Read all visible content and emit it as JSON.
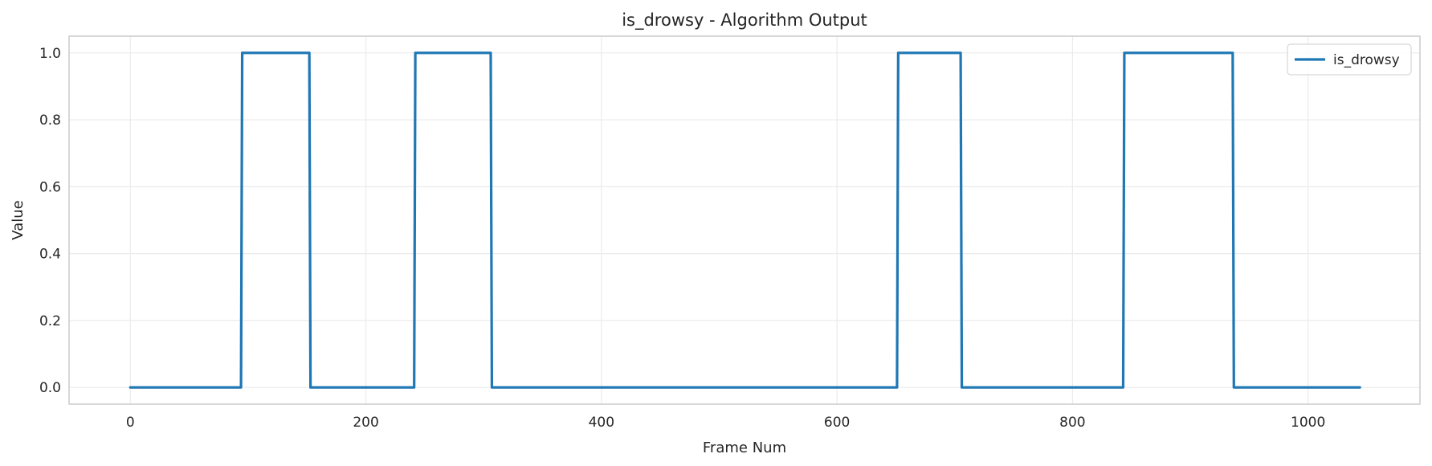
{
  "chart_data": {
    "type": "line",
    "title": "is_drowsy - Algorithm Output",
    "xlabel": "Frame Num",
    "ylabel": "Value",
    "xlim": [
      -52,
      1095
    ],
    "ylim": [
      -0.05,
      1.05
    ],
    "xticks": [
      0,
      200,
      400,
      600,
      800,
      1000
    ],
    "yticks": [
      0.0,
      0.2,
      0.4,
      0.6,
      0.8,
      1.0
    ],
    "xtick_labels": [
      "0",
      "200",
      "400",
      "600",
      "800",
      "1000"
    ],
    "ytick_labels": [
      "0.0",
      "0.2",
      "0.4",
      "0.6",
      "0.8",
      "1.0"
    ],
    "grid": true,
    "legend_position": "top-right",
    "series": [
      {
        "name": "is_drowsy",
        "color": "#1f77b4",
        "x": [
          0,
          94,
          95,
          152,
          153,
          241,
          242,
          306,
          307,
          651,
          652,
          705,
          706,
          843,
          844,
          936,
          937,
          1044
        ],
        "y": [
          0,
          0,
          1,
          1,
          0,
          0,
          1,
          1,
          0,
          0,
          1,
          1,
          0,
          0,
          1,
          1,
          0,
          0
        ]
      }
    ]
  }
}
